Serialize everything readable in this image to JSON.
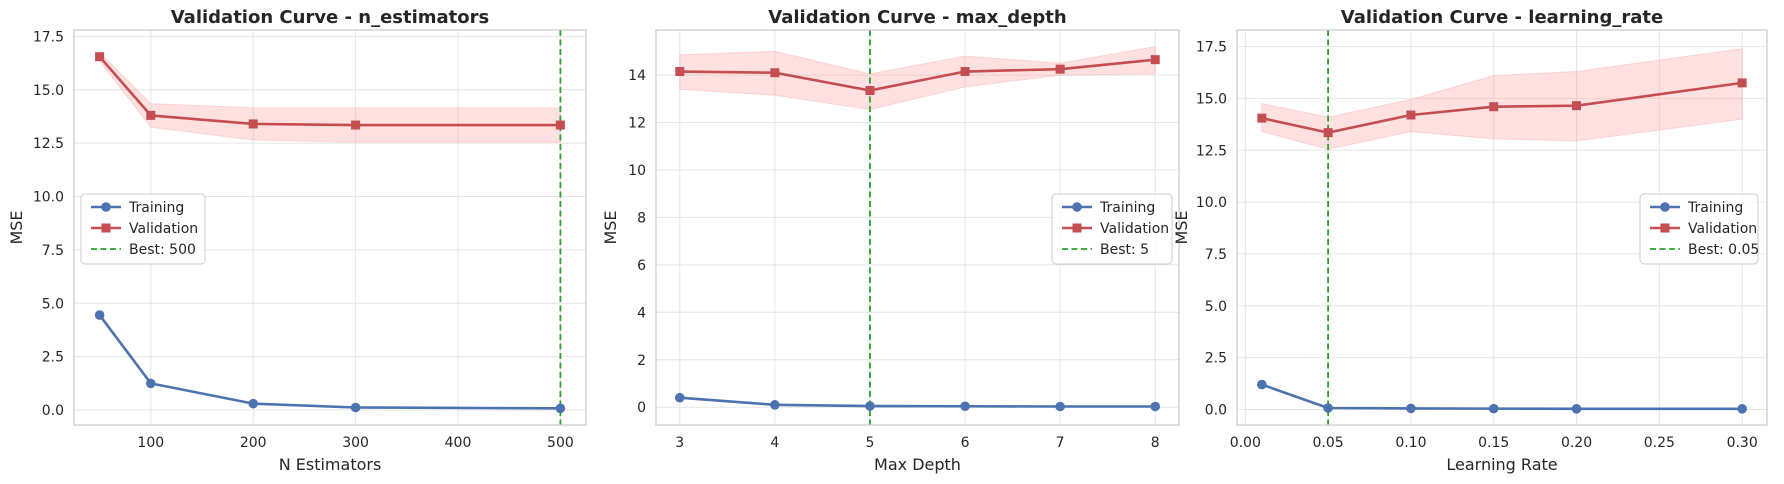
{
  "chart_data": [
    {
      "type": "line",
      "title": "Validation Curve - n_estimators",
      "xlabel": "N Estimators",
      "ylabel": "MSE",
      "xlim": [
        25,
        525
      ],
      "ylim": [
        -0.7,
        17.8
      ],
      "xticks": [
        100,
        200,
        300,
        400,
        500
      ],
      "xtick_labels": [
        "100",
        "200",
        "300",
        "400",
        "500"
      ],
      "yticks": [
        0,
        2.5,
        5,
        7.5,
        10,
        12.5,
        15,
        17.5
      ],
      "ytick_labels": [
        "0.0",
        "2.5",
        "5.0",
        "7.5",
        "10.0",
        "12.5",
        "15.0",
        "17.5"
      ],
      "x": [
        50,
        100,
        200,
        300,
        500
      ],
      "series": [
        {
          "name": "Training",
          "values": [
            4.45,
            1.25,
            0.3,
            0.12,
            0.08
          ],
          "color": "#4c72b0",
          "marker": "circle"
        },
        {
          "name": "Validation",
          "values": [
            16.55,
            13.8,
            13.4,
            13.35,
            13.35
          ],
          "lower": [
            16.35,
            13.25,
            12.65,
            12.55,
            12.55
          ],
          "upper": [
            16.75,
            14.35,
            14.15,
            14.15,
            14.15
          ],
          "color": "#c44e52",
          "marker": "square"
        }
      ],
      "best": {
        "label": "Best: 500",
        "x": 500
      },
      "grid": true,
      "legend": "center-left"
    },
    {
      "type": "line",
      "title": "Validation Curve - max_depth",
      "xlabel": "Max Depth",
      "ylabel": "MSE",
      "xlim": [
        2.75,
        8.25
      ],
      "ylim": [
        -0.75,
        15.9
      ],
      "xticks": [
        3,
        4,
        5,
        6,
        7,
        8
      ],
      "xtick_labels": [
        "3",
        "4",
        "5",
        "6",
        "7",
        "8"
      ],
      "yticks": [
        0,
        2,
        4,
        6,
        8,
        10,
        12,
        14
      ],
      "ytick_labels": [
        "0",
        "2",
        "4",
        "6",
        "8",
        "10",
        "12",
        "14"
      ],
      "x": [
        3,
        4,
        5,
        6,
        7,
        8
      ],
      "series": [
        {
          "name": "Training",
          "values": [
            0.4,
            0.1,
            0.05,
            0.04,
            0.03,
            0.03
          ],
          "color": "#4c72b0",
          "marker": "circle"
        },
        {
          "name": "Validation",
          "values": [
            14.15,
            14.1,
            13.35,
            14.15,
            14.25,
            14.65
          ],
          "lower": [
            13.4,
            13.15,
            12.55,
            13.5,
            14.0,
            14.05
          ],
          "upper": [
            14.85,
            15.0,
            14.05,
            14.8,
            14.5,
            15.2
          ],
          "color": "#c44e52",
          "marker": "square"
        }
      ],
      "best": {
        "label": "Best: 5",
        "x": 5
      },
      "grid": true,
      "legend": "center-right"
    },
    {
      "type": "line",
      "title": "Validation Curve - learning_rate",
      "xlabel": "Learning Rate",
      "ylabel": "MSE",
      "xlim": [
        -0.005,
        0.315
      ],
      "ylim": [
        -0.75,
        18.3
      ],
      "xticks": [
        0,
        0.05,
        0.1,
        0.15,
        0.2,
        0.25,
        0.3
      ],
      "xtick_labels": [
        "0.00",
        "0.05",
        "0.10",
        "0.15",
        "0.20",
        "0.25",
        "0.30"
      ],
      "yticks": [
        0,
        2.5,
        5,
        7.5,
        10,
        12.5,
        15,
        17.5
      ],
      "ytick_labels": [
        "0.0",
        "2.5",
        "5.0",
        "7.5",
        "10.0",
        "12.5",
        "15.0",
        "17.5"
      ],
      "x": [
        0.01,
        0.05,
        0.1,
        0.15,
        0.2,
        0.3
      ],
      "series": [
        {
          "name": "Training",
          "values": [
            1.2,
            0.07,
            0.05,
            0.04,
            0.03,
            0.03
          ],
          "color": "#4c72b0",
          "marker": "circle"
        },
        {
          "name": "Validation",
          "values": [
            14.05,
            13.35,
            14.2,
            14.6,
            14.65,
            15.75
          ],
          "lower": [
            13.4,
            12.55,
            13.4,
            13.05,
            12.95,
            14.0
          ],
          "upper": [
            14.75,
            14.1,
            14.95,
            16.1,
            16.3,
            17.4
          ],
          "color": "#c44e52",
          "marker": "square"
        }
      ],
      "best": {
        "label": "Best: 0.05",
        "x": 0.05
      },
      "grid": true,
      "legend": "center-right"
    }
  ]
}
